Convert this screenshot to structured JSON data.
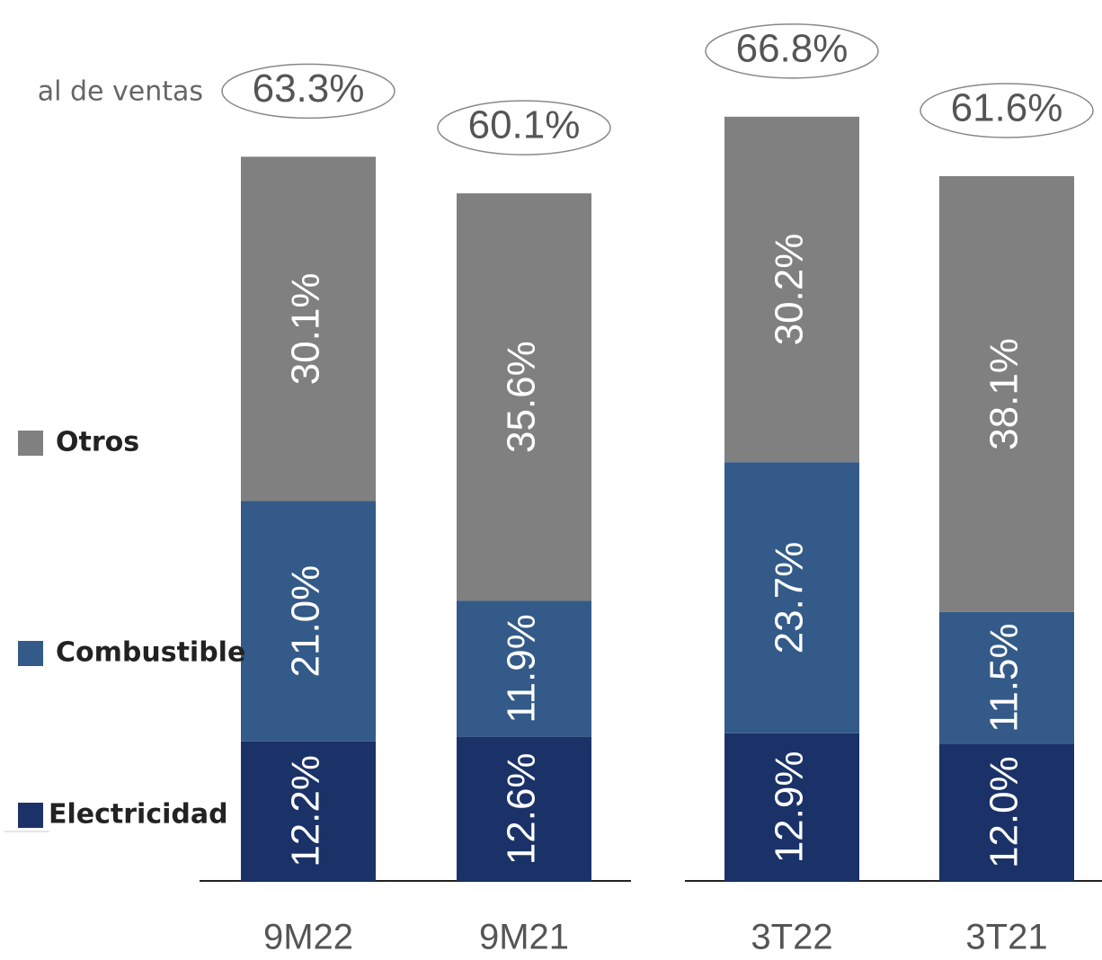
{
  "chart_data": {
    "type": "stacked_bar",
    "subtitle": "al de ventas",
    "categories": [
      "9M22",
      "9M21",
      "3T22",
      "3T21"
    ],
    "series": [
      {
        "name": "Electricidad",
        "color": "#1a3268",
        "values": [
          12.2,
          12.6,
          12.9,
          12.0
        ],
        "value_labels": [
          "12.2%",
          "12.6%",
          "12.9%",
          "12.0%"
        ]
      },
      {
        "name": "Combustible",
        "color": "#335a88",
        "values": [
          21.0,
          11.9,
          23.7,
          11.5
        ],
        "value_labels": [
          "21.0%",
          "11.9%",
          "23.7%",
          "11.5%"
        ]
      },
      {
        "name": "Otros",
        "color": "#808080",
        "values": [
          30.1,
          35.6,
          30.2,
          38.1
        ],
        "value_labels": [
          "30.1%",
          "35.6%",
          "30.2%",
          "38.1%"
        ]
      }
    ],
    "totals": [
      63.3,
      60.1,
      66.8,
      61.6
    ],
    "total_labels": [
      "63.3%",
      "60.1%",
      "66.8%",
      "61.6%"
    ],
    "ylim": [
      0,
      77
    ]
  }
}
